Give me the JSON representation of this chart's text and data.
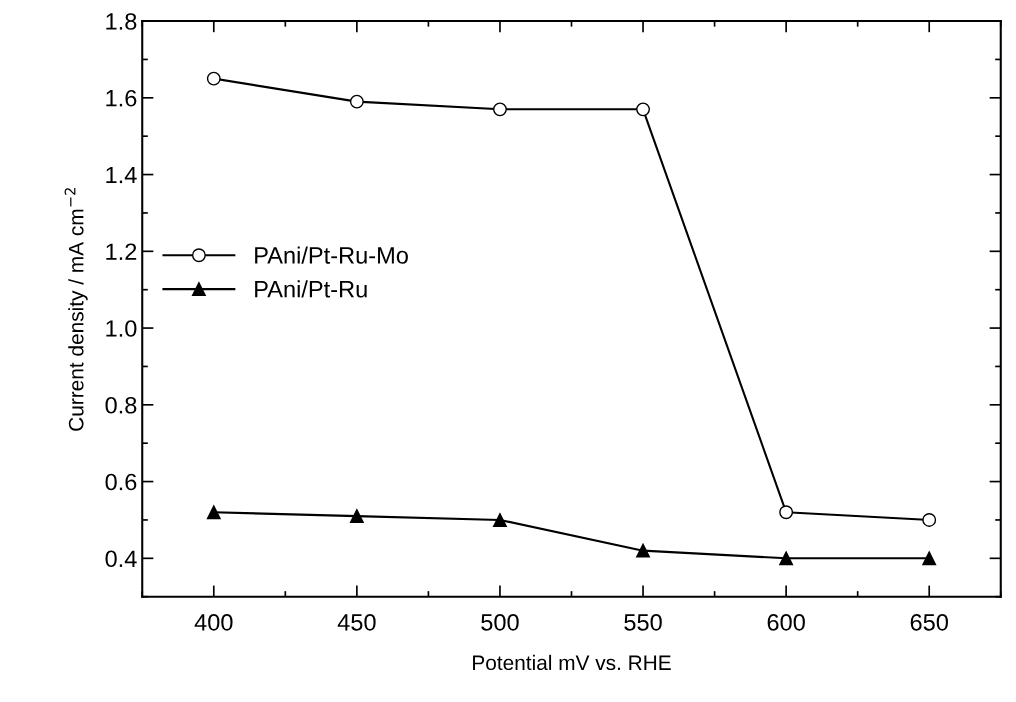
{
  "chart_data": {
    "type": "line",
    "xlabel": "Potential mV vs. RHE",
    "ylabel": "Current density / mA cm$^{−2}$",
    "x": [
      400,
      450,
      500,
      550,
      600,
      650
    ],
    "series": [
      {
        "name": "PAni/Pt-Ru-Mo",
        "color": "#000000",
        "marker": "circle",
        "values": [
          1.65,
          1.59,
          1.57,
          1.57,
          0.52,
          0.5
        ]
      },
      {
        "name": "PAni/Pt-Ru",
        "color": "#000000",
        "marker": "triangle",
        "values": [
          0.52,
          0.51,
          0.5,
          0.42,
          0.4,
          0.4
        ]
      }
    ],
    "xlim": [
      375,
      675
    ],
    "xticks": [
      400,
      450,
      500,
      550,
      600,
      650
    ],
    "ylim": [
      0.3,
      1.8
    ],
    "yticks": [
      {
        "value": 0.4,
        "label": "0.4"
      },
      {
        "value": 0.6,
        "label": "0.6"
      },
      {
        "value": 0.8,
        "label": "0.8"
      },
      {
        "value": 1.0,
        "label": "1.0"
      },
      {
        "value": 1.2,
        "label": "1.2"
      },
      {
        "value": 1.4,
        "label": "1.4"
      },
      {
        "value": 1.6,
        "label": "1.6"
      },
      {
        "value": 1.8,
        "label": "1.8"
      }
    ],
    "grid": false,
    "legend": "left",
    "line_style": "solid"
  }
}
